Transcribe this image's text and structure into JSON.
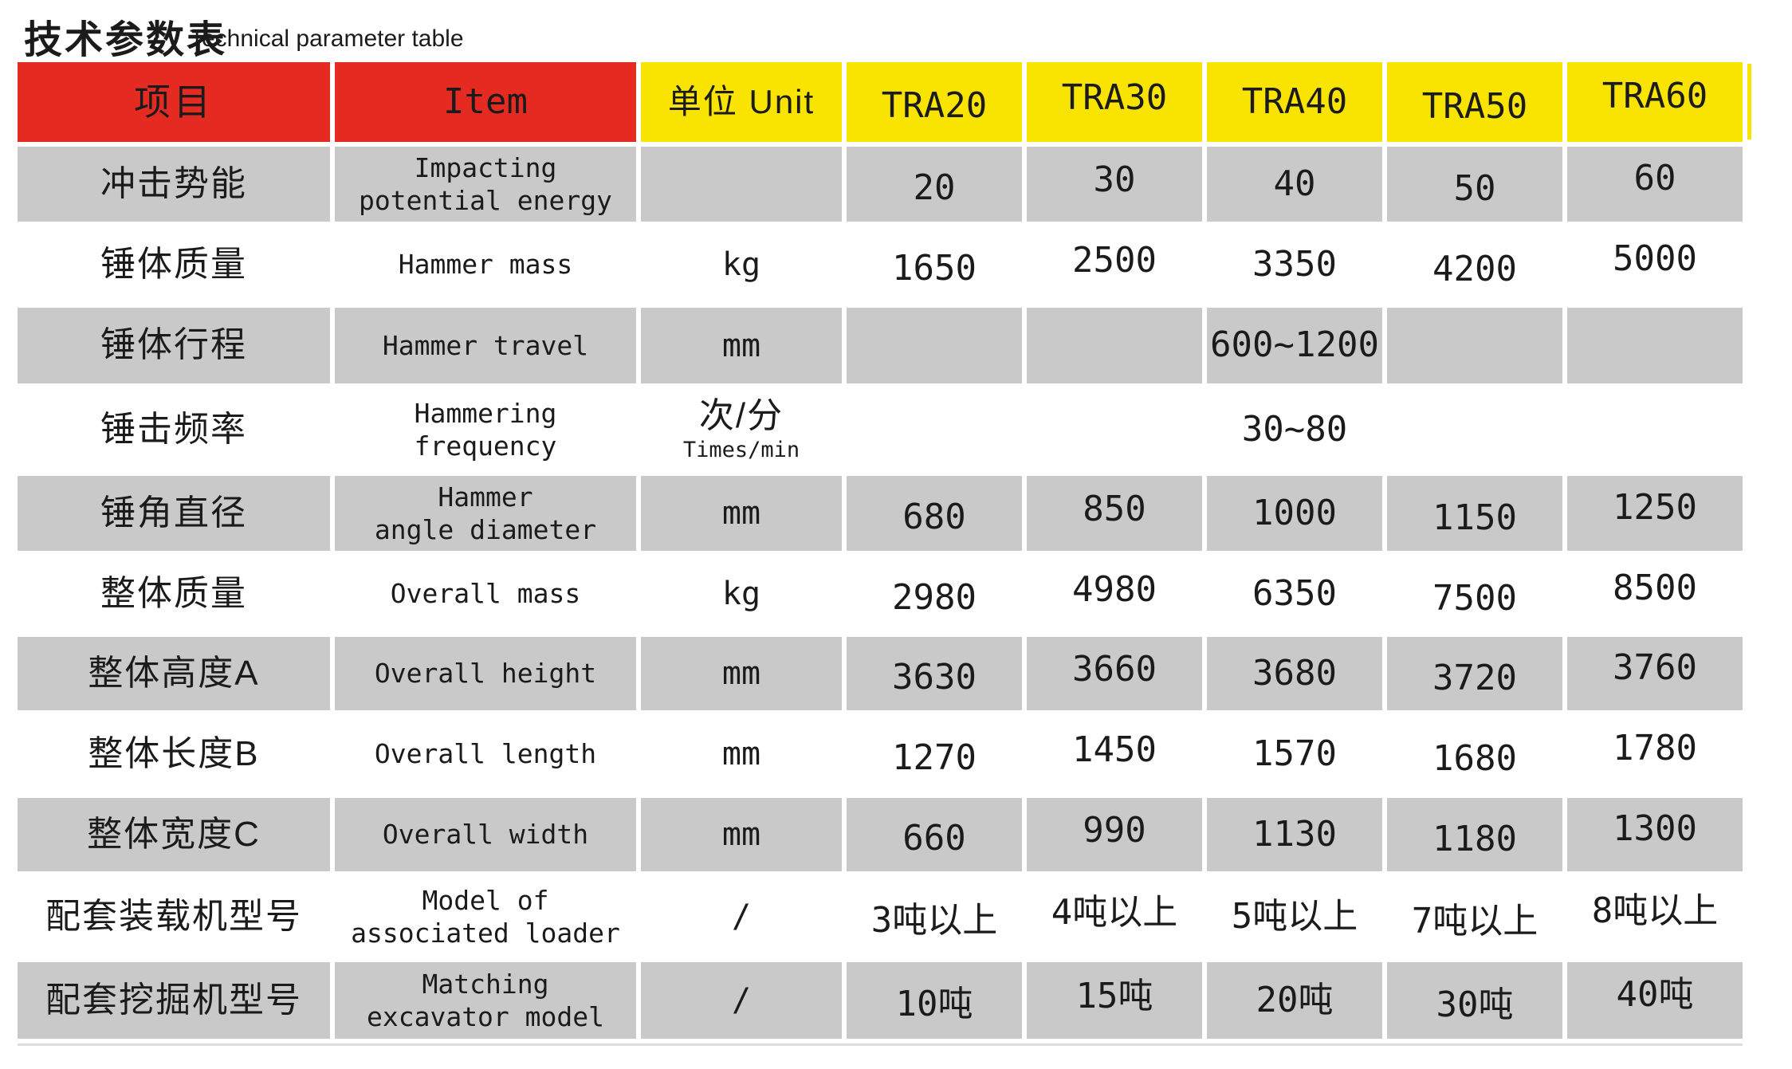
{
  "page": {
    "title_zh": "技术参数表",
    "title_en": "Technical parameter table"
  },
  "chart_data": {
    "type": "table",
    "title": "技术参数表 Technical parameter table",
    "columns": [
      "项目",
      "Item",
      "单位 Unit",
      "TRA20",
      "TRA30",
      "TRA40",
      "TRA50",
      "TRA60"
    ],
    "rows": [
      {
        "zh": "冲击势能",
        "en": [
          "Impacting",
          "potential energy"
        ],
        "unit": "",
        "values": [
          "20",
          "30",
          "40",
          "50",
          "60"
        ]
      },
      {
        "zh": "锤体质量",
        "en": [
          "Hammer mass"
        ],
        "unit": "kg",
        "values": [
          "1650",
          "2500",
          "3350",
          "4200",
          "5000"
        ]
      },
      {
        "zh": "锤体行程",
        "en": [
          "Hammer travel"
        ],
        "unit": "mm",
        "values": [
          "",
          "",
          "600~1200",
          "",
          ""
        ]
      },
      {
        "zh": "锤击频率",
        "en": [
          "Hammering",
          "frequency"
        ],
        "unit": "次/分",
        "unit_sub": "Times/min",
        "values": [
          "30~80"
        ]
      },
      {
        "zh": "锤角直径",
        "en": [
          "Hammer",
          "angle diameter"
        ],
        "unit": "mm",
        "values": [
          "680",
          "850",
          "1000",
          "1150",
          "1250"
        ]
      },
      {
        "zh": "整体质量",
        "en": [
          "Overall mass"
        ],
        "unit": "kg",
        "values": [
          "2980",
          "4980",
          "6350",
          "7500",
          "8500"
        ]
      },
      {
        "zh": "整体高度A",
        "en": [
          "Overall height"
        ],
        "unit": "mm",
        "values": [
          "3630",
          "3660",
          "3680",
          "3720",
          "3760"
        ]
      },
      {
        "zh": "整体长度B",
        "en": [
          "Overall length"
        ],
        "unit": "mm",
        "values": [
          "1270",
          "1450",
          "1570",
          "1680",
          "1780"
        ]
      },
      {
        "zh": "整体宽度C",
        "en": [
          "Overall width"
        ],
        "unit": "mm",
        "values": [
          "660",
          "990",
          "1130",
          "1180",
          "1300"
        ]
      },
      {
        "zh": "配套装载机型号",
        "en": [
          "Model of",
          "associated loader"
        ],
        "unit": "/",
        "values": [
          "3吨以上",
          "4吨以上",
          "5吨以上",
          "7吨以上",
          "8吨以上"
        ]
      },
      {
        "zh": "配套挖掘机型号",
        "en": [
          "Matching",
          "excavator model"
        ],
        "unit": "/",
        "values": [
          "10吨",
          "15吨",
          "20吨",
          "30吨",
          "40吨"
        ]
      }
    ],
    "notes": {
      "merged_values": "锤击频率 value 30~80 spans all five model columns; 锤体行程 value 600~1200 is shown only under TRA40",
      "shading": "rows alternate gray/white starting with gray"
    },
    "colors": {
      "header_red": "#e52a21",
      "header_yellow": "#f9e300",
      "row_gray": "#c9c9c9",
      "text": "#1b1b1b"
    },
    "legend_position": "none",
    "grid": false
  }
}
